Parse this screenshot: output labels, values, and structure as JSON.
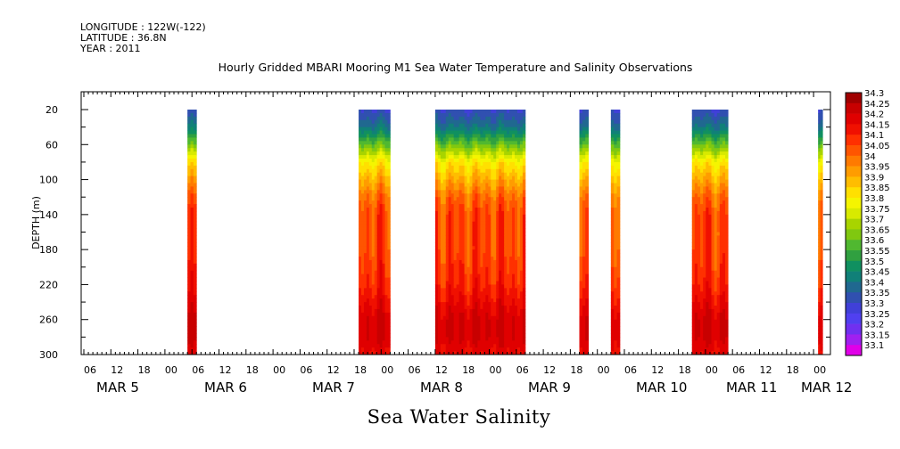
{
  "header": {
    "longitude": "LONGITUDE : 122W(-122)",
    "latitude": "LATITUDE : 36.8N",
    "year": "YEAR : 2011"
  },
  "chart_data": {
    "type": "heatmap",
    "title": "Hourly Gridded MBARI Mooring M1 Sea Water Temperature and Salinity Observations",
    "xlabel": "Sea Water Salinity",
    "ylabel": "DEPTH (m)",
    "ylim": [
      300,
      4
    ],
    "y_ticks": [
      20,
      60,
      100,
      140,
      180,
      220,
      260,
      300
    ],
    "hour_ticks": [
      "06",
      "12",
      "18",
      "00",
      "06",
      "12",
      "18",
      "00",
      "06",
      "12",
      "18",
      "00",
      "06",
      "12",
      "18",
      "00",
      "06",
      "12",
      "18",
      "00",
      "06",
      "12",
      "18",
      "00",
      "06",
      "12",
      "18",
      "00"
    ],
    "day_labels": [
      "MAR  5",
      "MAR  6",
      "MAR  7",
      "MAR  8",
      "MAR  9",
      "MAR 10",
      "MAR 11",
      "MAR 12"
    ],
    "colorbar": {
      "levels": [
        "34.3",
        "34.25",
        "34.2",
        "34.15",
        "34.1",
        "34.05",
        "34",
        "33.95",
        "33.9",
        "33.85",
        "33.8",
        "33.75",
        "33.7",
        "33.65",
        "33.6",
        "33.55",
        "33.5",
        "33.45",
        "33.4",
        "33.35",
        "33.3",
        "33.25",
        "33.2",
        "33.15",
        "33.1"
      ],
      "colors": [
        "#a00000",
        "#c80000",
        "#e00000",
        "#f01000",
        "#ff3000",
        "#ff5500",
        "#ff7a00",
        "#ff9c00",
        "#ffbd00",
        "#ffe000",
        "#f5f500",
        "#d8ea00",
        "#a8d400",
        "#80c810",
        "#50b830",
        "#30a040",
        "#109060",
        "#108078",
        "#206890",
        "#3050b0",
        "#4040d8",
        "#5040f0",
        "#7030f0",
        "#a020f0",
        "#e000e8"
      ]
    },
    "data_blocks": [
      {
        "start": "MAR 6 05:00",
        "end": "MAR 6 07:00"
      },
      {
        "start": "MAR 7 19:00",
        "end": "MAR 8 02:00"
      },
      {
        "start": "MAR 8 12:00",
        "end": "MAR 9 08:00"
      },
      {
        "start": "MAR 9 20:00",
        "end": "MAR 9 22:00"
      },
      {
        "start": "MAR 10 03:00",
        "end": "MAR 10 05:00"
      },
      {
        "start": "MAR 10 21:00",
        "end": "MAR 11 05:00"
      },
      {
        "start": "MAR 12 01:00",
        "end": "MAR 12 02:00"
      }
    ],
    "profile_depths": [
      20,
      40,
      60,
      80,
      100,
      120,
      140,
      180,
      220,
      240,
      260,
      280,
      300
    ],
    "profile_salinity_mean": [
      33.35,
      33.45,
      33.65,
      33.85,
      33.95,
      34.05,
      34.1,
      34.1,
      34.15,
      34.2,
      34.25,
      34.25,
      34.2
    ]
  }
}
